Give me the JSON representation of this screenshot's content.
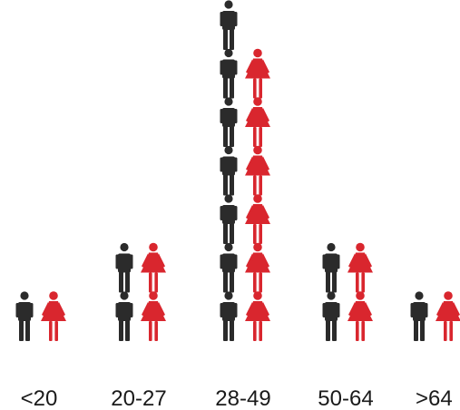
{
  "chart_data": {
    "type": "pictogram",
    "categories": [
      "<20",
      "20-27",
      "28-49",
      "50-64",
      ">64"
    ],
    "series": [
      {
        "values": [
          1,
          2,
          7,
          2,
          1
        ],
        "color": "#2b2b2b",
        "icon": "man-icon"
      },
      {
        "values": [
          1,
          2,
          6,
          2,
          1
        ],
        "color": "#d9262e",
        "icon": "woman-icon"
      }
    ],
    "title": "",
    "xlabel": "",
    "ylabel": ""
  }
}
